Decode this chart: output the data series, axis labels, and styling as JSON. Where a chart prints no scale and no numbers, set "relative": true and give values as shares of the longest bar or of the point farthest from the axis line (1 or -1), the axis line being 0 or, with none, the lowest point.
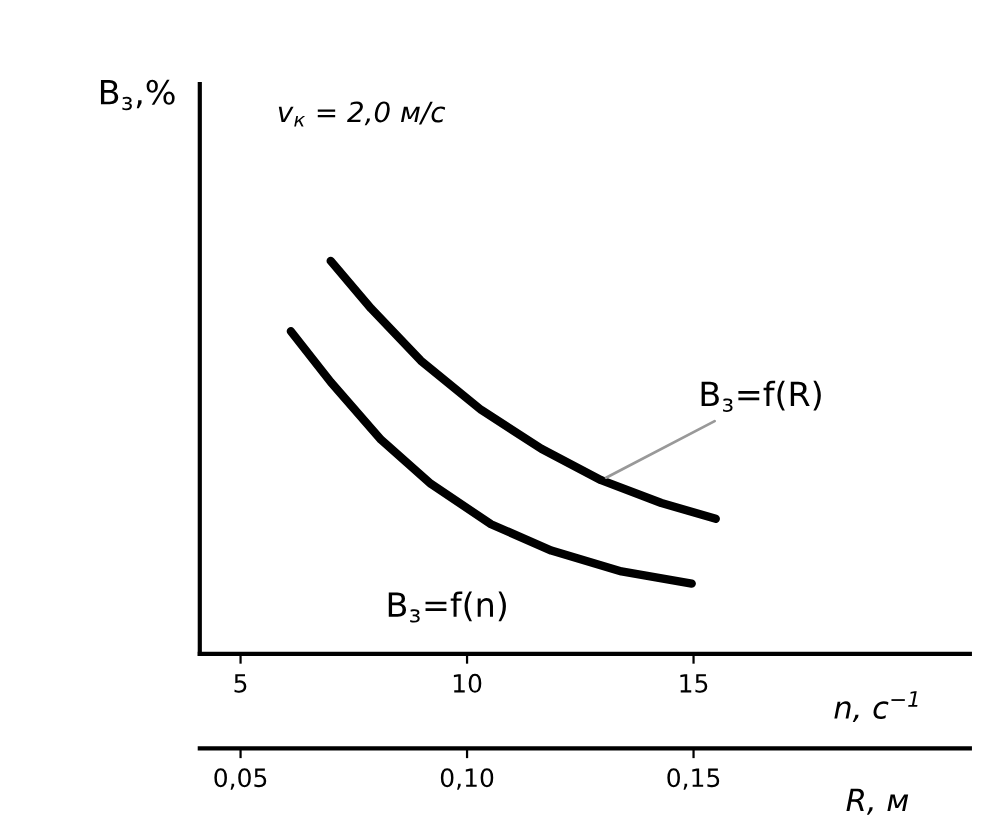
{
  "chart_data": {
    "type": "line",
    "relative": true,
    "xlabel": "n, с$^{−1}$",
    "x2label": "R, м",
    "ylabel": "B$_{з}$,%",
    "annotations": [
      "v$_{к}$ = 2,0 м/с"
    ],
    "xlim": [
      4.1,
      21.1
    ],
    "xticks": [
      5,
      10,
      15
    ],
    "x2lim": [
      0.041,
      0.211
    ],
    "x2ticks": [
      {
        "value": 0.05,
        "label": "0,05"
      },
      {
        "value": 0.1,
        "label": "0,10"
      },
      {
        "value": 0.15,
        "label": "0,15"
      }
    ],
    "grid": false,
    "marker": "none",
    "line_style": "solid",
    "series": [
      {
        "name": "B$_{з}$=f(R)",
        "color": "#000000",
        "x": [
          6.99,
          7.88,
          8.98,
          10.31,
          11.64,
          12.96,
          14.29,
          15.49
        ],
        "values": [
          1,
          0.879,
          0.746,
          0.621,
          0.522,
          0.442,
          0.384,
          0.344
        ]
      },
      {
        "name": "B$_{з}$=f(n)",
        "color": "#000000",
        "x": [
          6.11,
          6.99,
          8.1,
          9.2,
          10.53,
          11.86,
          13.41,
          14.96
        ],
        "values": [
          0.821,
          0.692,
          0.545,
          0.433,
          0.33,
          0.263,
          0.21,
          0.179
        ]
      }
    ]
  }
}
